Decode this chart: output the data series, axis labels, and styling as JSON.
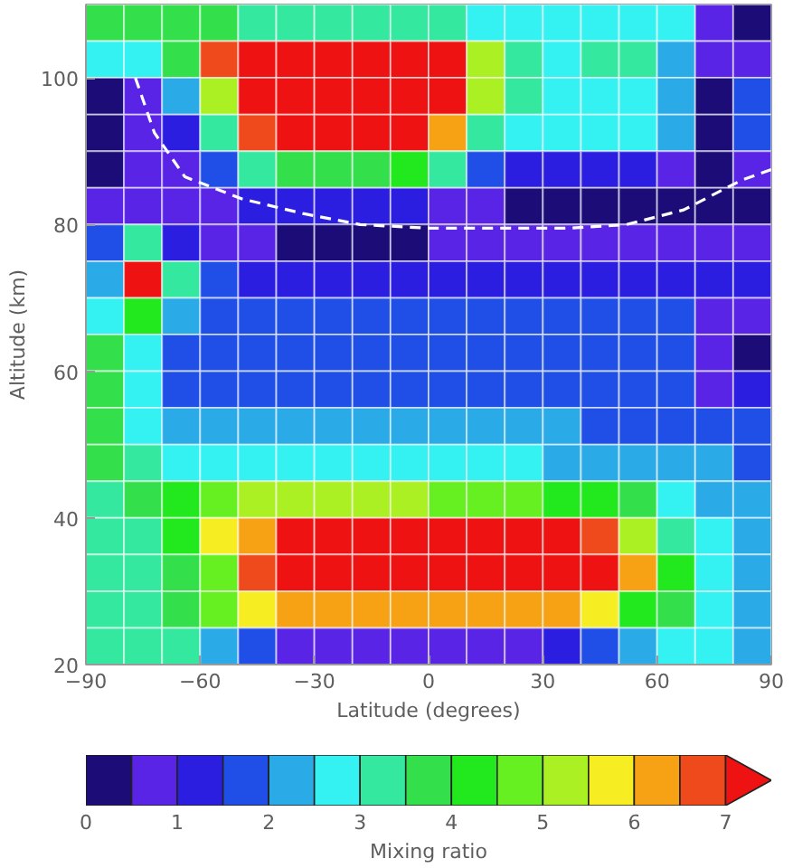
{
  "chart_data": {
    "type": "heatmap",
    "xlabel": "Latitude (degrees)",
    "ylabel": "Altitude (km)",
    "clabel": "Mixing ratio",
    "xlim": [
      -90,
      90
    ],
    "xticks": [
      -90,
      -60,
      -30,
      0,
      30,
      60,
      90
    ],
    "ylim": [
      20,
      110
    ],
    "yticks": [
      20,
      40,
      60,
      80,
      100
    ],
    "clim": [
      0,
      7.5
    ],
    "cticks": [
      0,
      1,
      2,
      3,
      4,
      5,
      6,
      7
    ],
    "colors": [
      "#1c0c78",
      "#5a24e6",
      "#2c1ee0",
      "#1f4fe6",
      "#2aaae6",
      "#35f2f2",
      "#35e8a0",
      "#33e04c",
      "#22e81e",
      "#66f022",
      "#aaf022",
      "#f6ee22",
      "#f6a214",
      "#ee4a1c",
      "#ee1212"
    ],
    "x": [
      -85,
      -75,
      -65,
      -55,
      -45,
      -35,
      -25,
      -15,
      -5,
      5,
      15,
      25,
      35,
      45,
      55,
      65,
      75,
      85
    ],
    "cells": [
      [
        3.75,
        3.75,
        3.75,
        3.75,
        3.25,
        3.25,
        3.25,
        3.25,
        3.25,
        3.25,
        2.75,
        2.75,
        2.75,
        2.75,
        2.75,
        2.75,
        0.75,
        0.25
      ],
      [
        2.75,
        2.75,
        3.75,
        6.75,
        7.25,
        7.25,
        7.25,
        7.25,
        7.25,
        7.25,
        5.25,
        3.25,
        2.75,
        3.25,
        3.25,
        2.25,
        0.75,
        0.75
      ],
      [
        0.25,
        0.75,
        2.25,
        5.25,
        7.25,
        7.25,
        7.25,
        7.25,
        7.25,
        7.25,
        5.25,
        3.25,
        2.75,
        2.75,
        2.75,
        2.25,
        0.25,
        1.75
      ],
      [
        0.25,
        0.75,
        1.25,
        3.25,
        6.75,
        7.25,
        7.25,
        7.25,
        7.25,
        6.25,
        3.25,
        2.75,
        2.75,
        2.75,
        2.75,
        2.25,
        0.25,
        1.75
      ],
      [
        0.25,
        0.75,
        0.75,
        1.75,
        3.25,
        3.75,
        3.75,
        3.75,
        4.25,
        3.25,
        1.75,
        1.25,
        1.25,
        1.25,
        1.25,
        0.75,
        0.25,
        0.75
      ],
      [
        0.75,
        0.75,
        0.75,
        0.75,
        1.25,
        1.25,
        1.25,
        1.25,
        1.25,
        0.75,
        0.75,
        0.25,
        0.25,
        0.25,
        0.25,
        0.25,
        0.25,
        0.25
      ],
      [
        1.75,
        3.25,
        1.25,
        0.75,
        0.75,
        0.25,
        0.25,
        0.25,
        0.25,
        0.75,
        0.75,
        0.75,
        0.75,
        0.75,
        0.75,
        0.75,
        0.75,
        0.75
      ],
      [
        2.25,
        7.25,
        3.25,
        1.75,
        1.25,
        1.25,
        1.25,
        1.25,
        1.25,
        1.25,
        1.25,
        1.25,
        1.25,
        1.25,
        1.25,
        1.25,
        1.25,
        1.25
      ],
      [
        2.75,
        4.25,
        2.25,
        1.75,
        1.75,
        1.75,
        1.75,
        1.75,
        1.75,
        1.75,
        1.75,
        1.75,
        1.75,
        1.75,
        1.75,
        1.75,
        0.75,
        0.75
      ],
      [
        3.75,
        2.75,
        1.75,
        1.75,
        1.75,
        1.75,
        1.75,
        1.75,
        1.75,
        1.75,
        1.75,
        1.75,
        1.75,
        1.75,
        1.75,
        1.75,
        0.75,
        0.25
      ],
      [
        3.75,
        2.75,
        1.75,
        1.75,
        1.75,
        1.75,
        1.75,
        1.75,
        1.75,
        1.75,
        1.75,
        1.75,
        1.75,
        1.75,
        1.75,
        1.75,
        0.75,
        1.25
      ],
      [
        3.75,
        2.75,
        2.25,
        2.25,
        2.25,
        2.25,
        2.25,
        2.25,
        2.25,
        2.25,
        2.25,
        2.25,
        2.25,
        1.75,
        1.75,
        1.75,
        1.75,
        1.75
      ],
      [
        3.75,
        3.25,
        2.75,
        2.75,
        2.75,
        2.75,
        2.75,
        2.75,
        2.75,
        2.75,
        2.75,
        2.75,
        2.25,
        2.25,
        2.25,
        2.25,
        2.25,
        1.75
      ],
      [
        3.25,
        3.75,
        4.25,
        4.75,
        5.25,
        5.25,
        5.25,
        5.25,
        5.25,
        4.75,
        4.75,
        4.75,
        4.25,
        4.25,
        3.75,
        2.75,
        2.25,
        2.25
      ],
      [
        3.25,
        3.25,
        4.25,
        5.75,
        6.25,
        7.25,
        7.25,
        7.25,
        7.25,
        7.25,
        7.25,
        7.25,
        7.25,
        6.75,
        5.25,
        3.25,
        2.75,
        2.25
      ],
      [
        3.25,
        3.25,
        3.75,
        4.75,
        6.75,
        7.25,
        7.25,
        7.25,
        7.25,
        7.25,
        7.25,
        7.25,
        7.25,
        7.25,
        6.25,
        4.25,
        2.75,
        2.25
      ],
      [
        3.25,
        3.25,
        3.75,
        4.75,
        5.75,
        6.25,
        6.25,
        6.25,
        6.25,
        6.25,
        6.25,
        6.25,
        6.25,
        5.75,
        4.25,
        3.75,
        2.75,
        2.25
      ],
      [
        3.25,
        3.25,
        3.25,
        2.25,
        1.75,
        0.75,
        0.75,
        0.75,
        0.75,
        0.75,
        0.75,
        0.75,
        1.25,
        1.75,
        2.25,
        2.75,
        2.75,
        2.25
      ]
    ],
    "series": [
      {
        "type": "line",
        "color": "#ffffff",
        "line_style": "dashed",
        "x": [
          -77,
          -72,
          -64,
          -49,
          -33,
          -18,
          0,
          20,
          37,
          52,
          67,
          82,
          90
        ],
        "values": [
          100,
          92.5,
          86.5,
          83.5,
          81.5,
          80,
          79.5,
          79.5,
          79.5,
          80,
          82,
          86,
          87.5
        ]
      }
    ]
  }
}
